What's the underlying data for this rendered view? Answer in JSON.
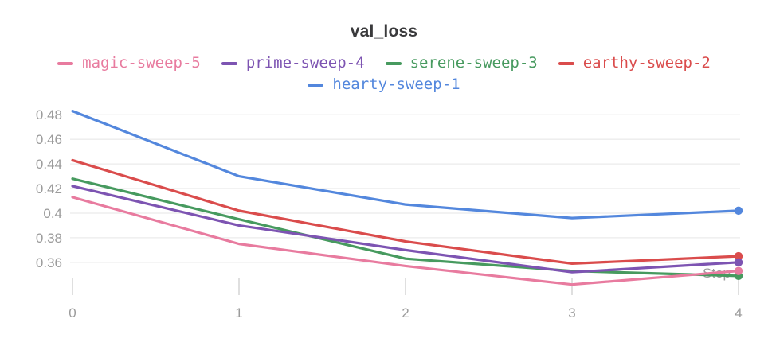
{
  "panel": {
    "title": "val_loss"
  },
  "colors": {
    "title_text": "#3a3a3c",
    "axis_text": "#9b9b9b",
    "grid_line": "#ebebeb",
    "tick_mark": "#dfdfdf",
    "background": "#ffffff"
  },
  "chart_data": {
    "type": "line",
    "title": "val_loss",
    "xlabel": "Step",
    "ylabel": "",
    "x": [
      0,
      1,
      2,
      3,
      4
    ],
    "x_tick_labels": [
      "0",
      "1",
      "2",
      "3",
      "4"
    ],
    "ylim": [
      0.335,
      0.485
    ],
    "xlim": [
      0,
      4
    ],
    "y_ticks": [
      0.36,
      0.38,
      0.4,
      0.42,
      0.44,
      0.46,
      0.48
    ],
    "y_tick_labels": [
      "0.36",
      "0.38",
      "0.4",
      "0.42",
      "0.44",
      "0.46",
      "0.48"
    ],
    "grid": true,
    "legend_position": "top-center-two-rows",
    "legend_rows": [
      [
        "magic-sweep-5",
        "prime-sweep-4",
        "serene-sweep-3",
        "earthy-sweep-2"
      ],
      [
        "hearty-sweep-1"
      ]
    ],
    "end_markers": true,
    "series": [
      {
        "name": "magic-sweep-5",
        "color": "#e87b9f",
        "values": [
          0.413,
          0.375,
          0.357,
          0.342,
          0.353
        ]
      },
      {
        "name": "prime-sweep-4",
        "color": "#7d54b2",
        "values": [
          0.422,
          0.39,
          0.37,
          0.352,
          0.36
        ]
      },
      {
        "name": "serene-sweep-3",
        "color": "#479a5f",
        "values": [
          0.428,
          0.395,
          0.363,
          0.353,
          0.349
        ]
      },
      {
        "name": "earthy-sweep-2",
        "color": "#da4c4c",
        "values": [
          0.443,
          0.402,
          0.377,
          0.359,
          0.365
        ]
      },
      {
        "name": "hearty-sweep-1",
        "color": "#5387dd",
        "values": [
          0.483,
          0.43,
          0.407,
          0.396,
          0.402
        ]
      }
    ]
  }
}
